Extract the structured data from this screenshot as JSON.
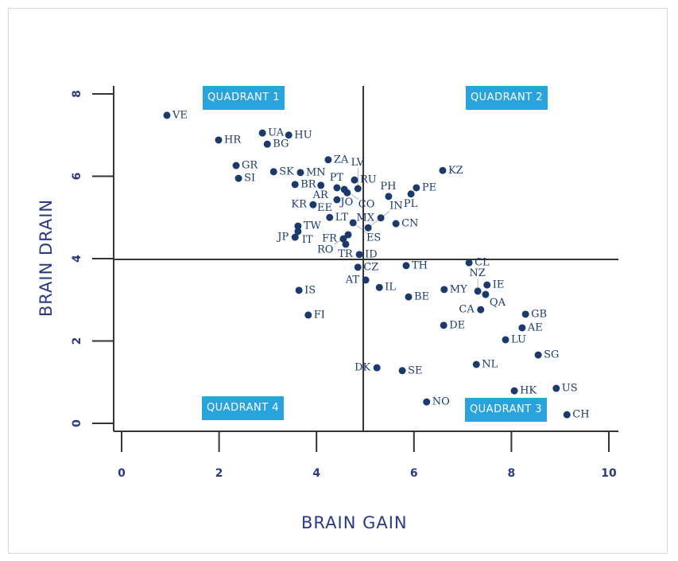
{
  "chart_data": {
    "type": "scatter",
    "xlabel": "BRAIN GAIN",
    "ylabel": "BRAIN DRAIN",
    "xlim": [
      0,
      10
    ],
    "ylim": [
      0,
      8
    ],
    "xticks": [
      0,
      2,
      4,
      6,
      8,
      10
    ],
    "yticks": [
      0,
      2,
      4,
      6,
      8
    ],
    "grid": false,
    "divider_x": 4.96,
    "divider_y": 3.98,
    "quadrants": {
      "q1": "QUADRANT 1",
      "q2": "QUADRANT 2",
      "q3": "QUADRANT 3",
      "q4": "QUADRANT 4"
    },
    "colors": {
      "point": "#1b3a6b",
      "quadrant_label": "#29a3dc",
      "axis_text": "#2b3a84"
    },
    "points": [
      {
        "label": "VE",
        "x": 0.93,
        "y": 7.48
      },
      {
        "label": "HR",
        "x": 1.99,
        "y": 6.88
      },
      {
        "label": "UA",
        "x": 2.89,
        "y": 7.05
      },
      {
        "label": "HU",
        "x": 3.43,
        "y": 7.0
      },
      {
        "label": "BG",
        "x": 2.99,
        "y": 6.78
      },
      {
        "label": "ZA",
        "x": 4.24,
        "y": 6.4
      },
      {
        "label": "GR",
        "x": 2.35,
        "y": 6.26
      },
      {
        "label": "SK",
        "x": 3.12,
        "y": 6.11
      },
      {
        "label": "MN",
        "x": 3.67,
        "y": 6.09
      },
      {
        "label": "SI",
        "x": 2.4,
        "y": 5.95
      },
      {
        "label": "RU",
        "x": 4.78,
        "y": 5.91
      },
      {
        "label": "BR",
        "x": 3.56,
        "y": 5.8
      },
      {
        "label": "AR",
        "x": 4.09,
        "y": 5.78
      },
      {
        "label": "PT",
        "x": 4.42,
        "y": 5.72
      },
      {
        "label": "CO",
        "x": 4.57,
        "y": 5.68
      },
      {
        "label": "JO",
        "x": 4.63,
        "y": 5.6
      },
      {
        "label": "LV",
        "x": 4.85,
        "y": 5.7
      },
      {
        "label": "KZ",
        "x": 6.59,
        "y": 6.14
      },
      {
        "label": "PE",
        "x": 6.05,
        "y": 5.72
      },
      {
        "label": "PL",
        "x": 5.94,
        "y": 5.57
      },
      {
        "label": "PH",
        "x": 5.48,
        "y": 5.51
      },
      {
        "label": "EE",
        "x": 4.42,
        "y": 5.43
      },
      {
        "label": "KR",
        "x": 3.93,
        "y": 5.31
      },
      {
        "label": "LT",
        "x": 4.27,
        "y": 5.0
      },
      {
        "label": "MX",
        "x": 5.32,
        "y": 4.99
      },
      {
        "label": "CN",
        "x": 5.63,
        "y": 4.85
      },
      {
        "label": "ES",
        "x": 4.75,
        "y": 4.87
      },
      {
        "label": "IN",
        "x": 5.06,
        "y": 4.75
      },
      {
        "label": "TW",
        "x": 3.62,
        "y": 4.79
      },
      {
        "label": "IT",
        "x": 3.62,
        "y": 4.66
      },
      {
        "label": "JP",
        "x": 3.56,
        "y": 4.52
      },
      {
        "label": "RO",
        "x": 4.65,
        "y": 4.58
      },
      {
        "label": "FR",
        "x": 4.55,
        "y": 4.48
      },
      {
        "label": "TR",
        "x": 4.6,
        "y": 4.35
      },
      {
        "label": "ID",
        "x": 4.88,
        "y": 4.1
      },
      {
        "label": "CL",
        "x": 7.13,
        "y": 3.9
      },
      {
        "label": "CZ",
        "x": 4.85,
        "y": 3.79
      },
      {
        "label": "TH",
        "x": 5.84,
        "y": 3.83
      },
      {
        "label": "AT",
        "x": 5.01,
        "y": 3.48
      },
      {
        "label": "IL",
        "x": 5.29,
        "y": 3.3
      },
      {
        "label": "IS",
        "x": 3.64,
        "y": 3.23
      },
      {
        "label": "MY",
        "x": 6.62,
        "y": 3.25
      },
      {
        "label": "IE",
        "x": 7.5,
        "y": 3.36
      },
      {
        "label": "NZ",
        "x": 7.31,
        "y": 3.21
      },
      {
        "label": "QA",
        "x": 7.47,
        "y": 3.13
      },
      {
        "label": "BE",
        "x": 5.89,
        "y": 3.07
      },
      {
        "label": "CA",
        "x": 7.37,
        "y": 2.76
      },
      {
        "label": "GB",
        "x": 8.29,
        "y": 2.65
      },
      {
        "label": "FI",
        "x": 3.83,
        "y": 2.63
      },
      {
        "label": "DE",
        "x": 6.61,
        "y": 2.38
      },
      {
        "label": "AE",
        "x": 8.22,
        "y": 2.32
      },
      {
        "label": "LU",
        "x": 7.88,
        "y": 2.03
      },
      {
        "label": "SG",
        "x": 8.55,
        "y": 1.66
      },
      {
        "label": "NL",
        "x": 7.28,
        "y": 1.43
      },
      {
        "label": "DK",
        "x": 5.24,
        "y": 1.35
      },
      {
        "label": "SE",
        "x": 5.76,
        "y": 1.28
      },
      {
        "label": "HK",
        "x": 8.06,
        "y": 0.79
      },
      {
        "label": "US",
        "x": 8.92,
        "y": 0.85
      },
      {
        "label": "NO",
        "x": 6.26,
        "y": 0.52
      },
      {
        "label": "CH",
        "x": 9.14,
        "y": 0.21
      }
    ]
  }
}
